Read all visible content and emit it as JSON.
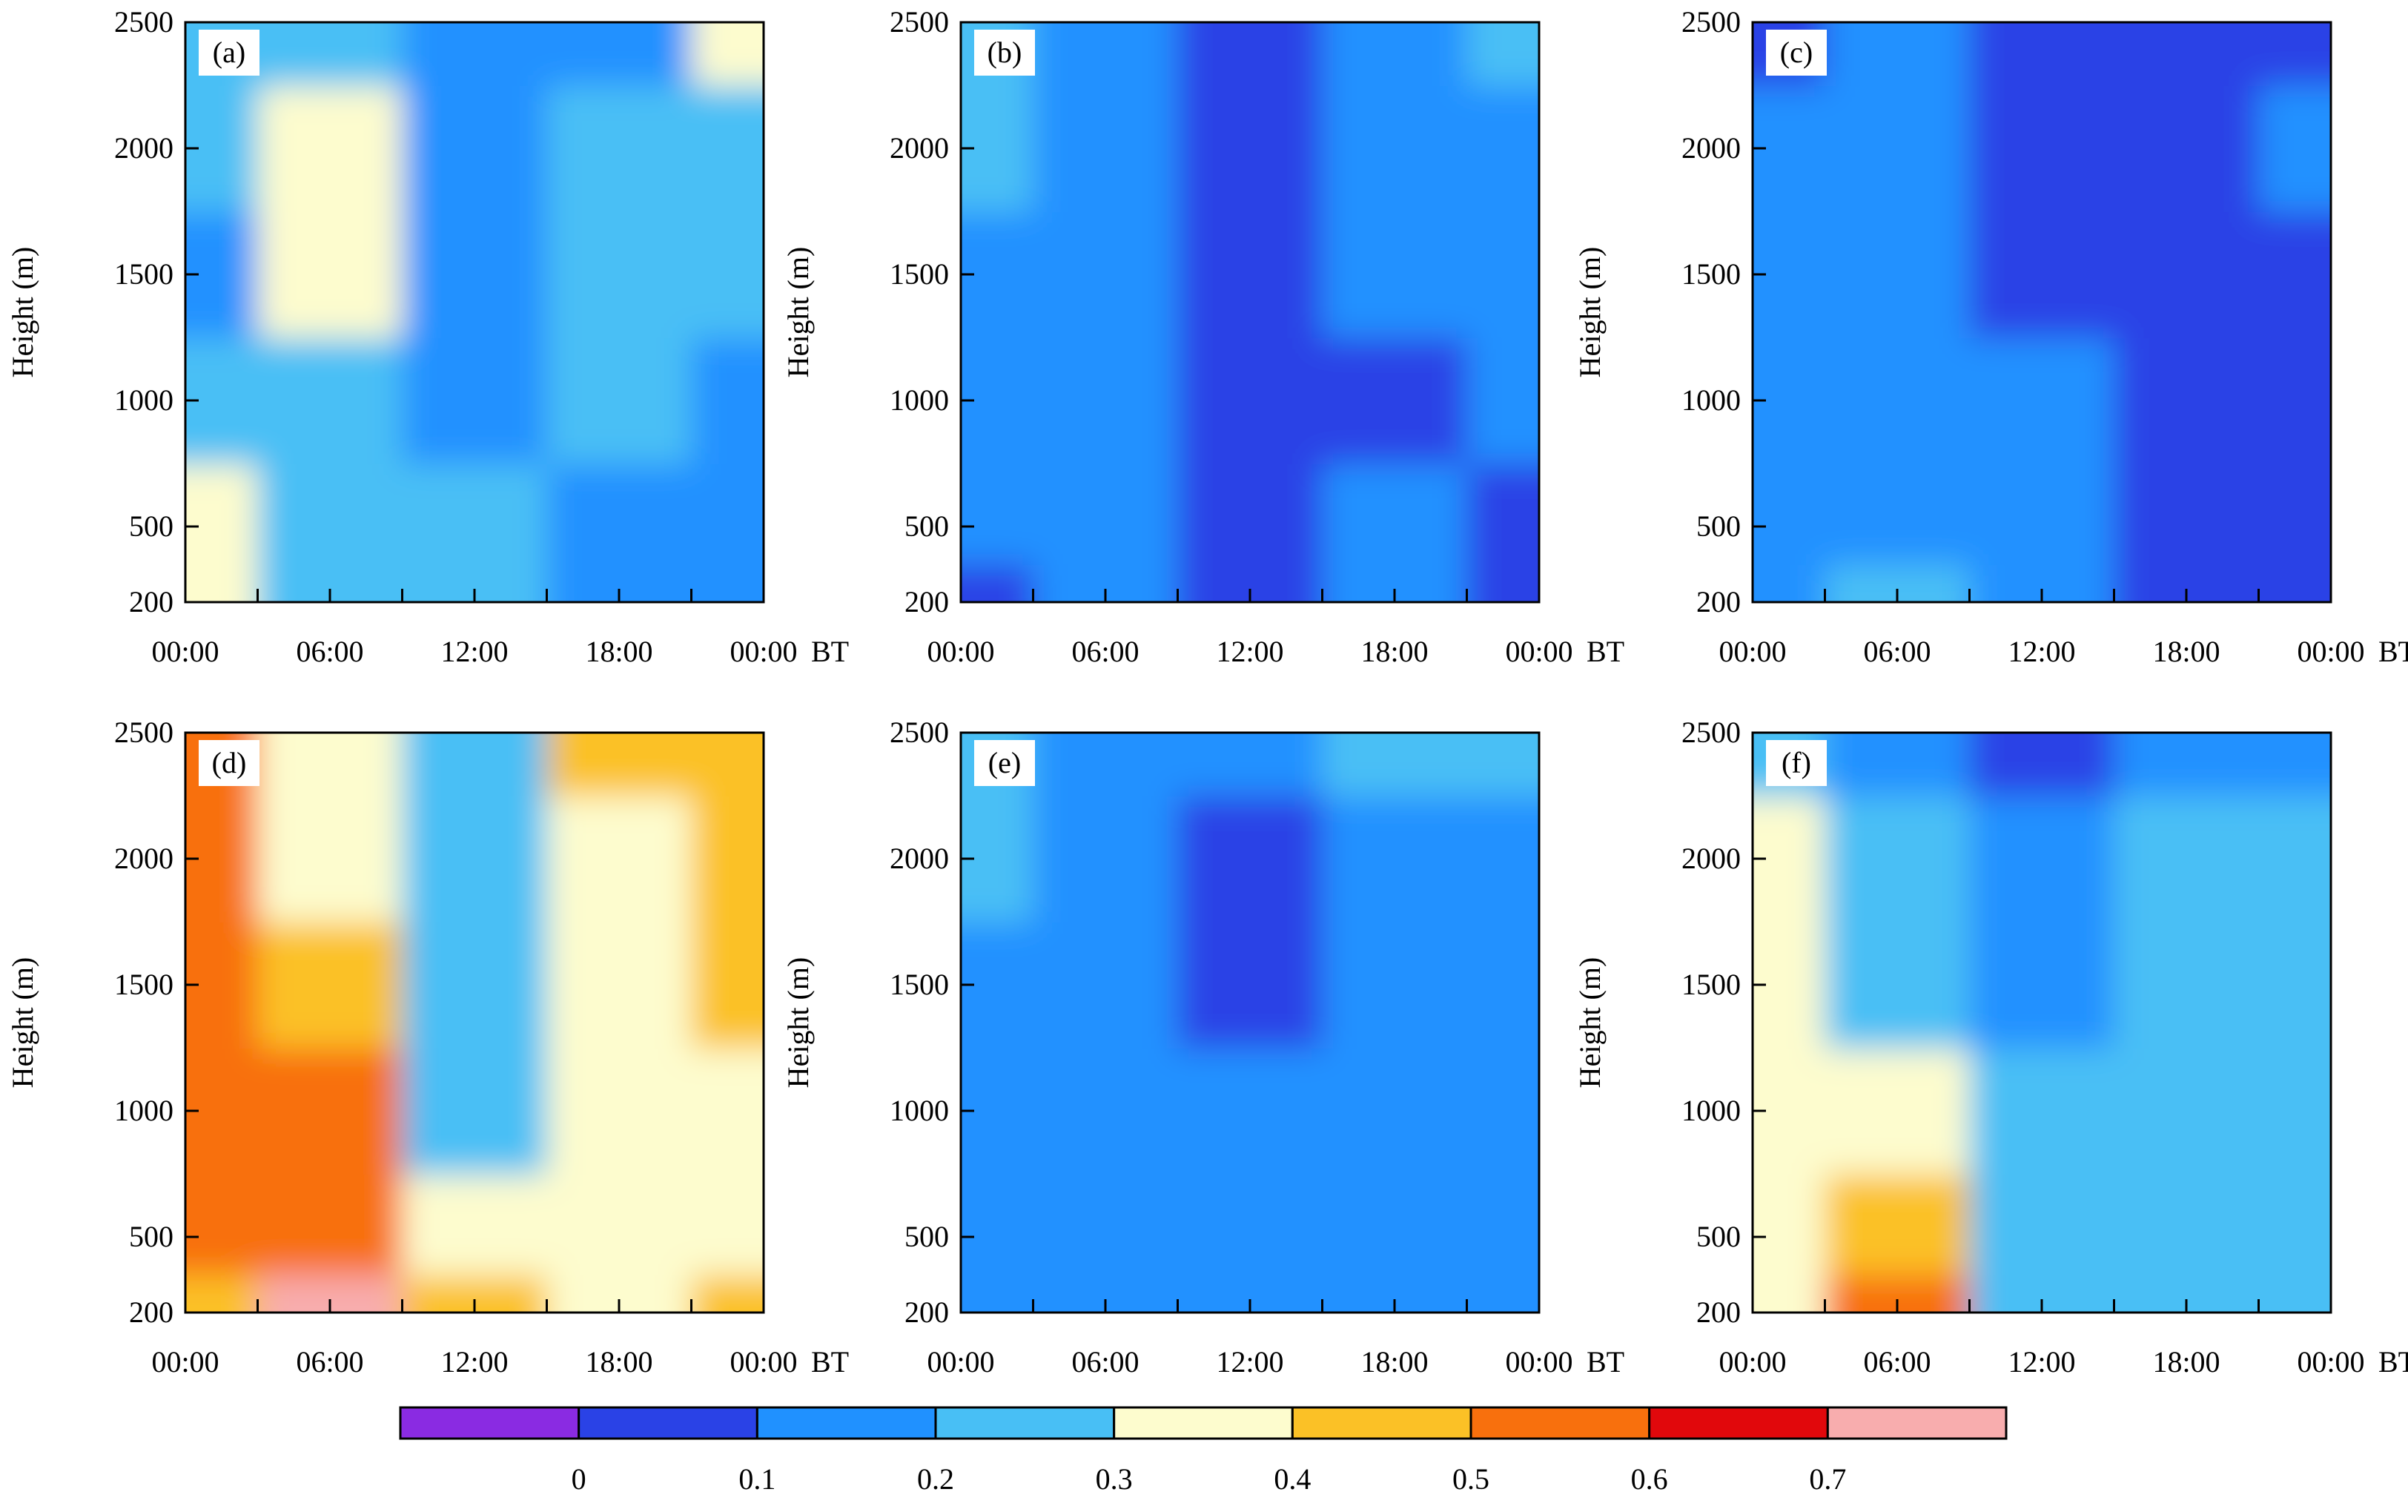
{
  "chart_data": [
    {
      "type": "heatmap",
      "panel": "(a)",
      "colorscale": "contour bins",
      "x_ticks": [
        "00:00",
        "06:00",
        "12:00",
        "18:00",
        "00:00 BT"
      ],
      "xlabel": "",
      "ylabel": "Height (m)",
      "y_ticks": [
        200,
        500,
        1000,
        1500,
        2000,
        2500
      ],
      "ylim": [
        200,
        2500
      ],
      "x_hours": [
        0,
        6,
        12,
        18,
        24
      ],
      "y_levels": [
        200,
        500,
        1000,
        1500,
        2000,
        2500
      ],
      "z": [
        [
          0.35,
          0.35,
          0.25,
          0.15,
          0.25,
          0.25
        ],
        [
          0.25,
          0.25,
          0.25,
          0.35,
          0.35,
          0.25
        ],
        [
          0.25,
          0.25,
          0.15,
          0.15,
          0.15,
          0.15
        ],
        [
          0.15,
          0.15,
          0.25,
          0.25,
          0.25,
          0.15
        ],
        [
          0.15,
          0.15,
          0.15,
          0.25,
          0.25,
          0.35
        ]
      ]
    },
    {
      "type": "heatmap",
      "panel": "(b)",
      "colorscale": "contour bins",
      "x_ticks": [
        "00:00",
        "06:00",
        "12:00",
        "18:00",
        "00:00 BT"
      ],
      "xlabel": "",
      "ylabel": "Height (m)",
      "y_ticks": [
        200,
        500,
        1000,
        1500,
        2000,
        2500
      ],
      "ylim": [
        200,
        2500
      ],
      "x_hours": [
        0,
        6,
        12,
        18,
        24
      ],
      "y_levels": [
        200,
        500,
        1000,
        1500,
        2000,
        2500
      ],
      "z": [
        [
          0.05,
          0.15,
          0.15,
          0.15,
          0.25,
          0.25
        ],
        [
          0.15,
          0.15,
          0.15,
          0.15,
          0.15,
          0.15
        ],
        [
          0.05,
          0.05,
          0.05,
          0.05,
          0.05,
          0.05
        ],
        [
          0.15,
          0.15,
          0.05,
          0.15,
          0.15,
          0.15
        ],
        [
          0.05,
          0.05,
          0.15,
          0.15,
          0.15,
          0.25
        ]
      ]
    },
    {
      "type": "heatmap",
      "panel": "(c)",
      "colorscale": "contour bins",
      "x_ticks": [
        "00:00",
        "06:00",
        "12:00",
        "18:00",
        "00:00 BT"
      ],
      "xlabel": "",
      "ylabel": "Height (m)",
      "y_ticks": [
        200,
        500,
        1000,
        1500,
        2000,
        2500
      ],
      "ylim": [
        200,
        2500
      ],
      "x_hours": [
        0,
        6,
        12,
        18,
        24
      ],
      "y_levels": [
        200,
        500,
        1000,
        1500,
        2000,
        2500
      ],
      "z": [
        [
          0.15,
          0.15,
          0.15,
          0.15,
          0.15,
          0.05
        ],
        [
          0.25,
          0.15,
          0.15,
          0.15,
          0.15,
          0.15
        ],
        [
          0.15,
          0.15,
          0.15,
          0.05,
          0.05,
          0.05
        ],
        [
          0.05,
          0.05,
          0.05,
          0.05,
          0.05,
          0.05
        ],
        [
          0.05,
          0.05,
          0.05,
          0.05,
          0.15,
          0.05
        ]
      ]
    },
    {
      "type": "heatmap",
      "panel": "(d)",
      "colorscale": "contour bins",
      "x_ticks": [
        "00:00",
        "06:00",
        "12:00",
        "18:00",
        "00:00 BT"
      ],
      "xlabel": "",
      "ylabel": "Height (m)",
      "y_ticks": [
        200,
        500,
        1000,
        1500,
        2000,
        2500
      ],
      "ylim": [
        200,
        2500
      ],
      "x_hours": [
        0,
        6,
        12,
        18,
        24
      ],
      "y_levels": [
        200,
        500,
        1000,
        1500,
        2000,
        2500
      ],
      "z": [
        [
          0.45,
          0.55,
          0.55,
          0.55,
          0.55,
          0.55
        ],
        [
          0.75,
          0.55,
          0.55,
          0.45,
          0.35,
          0.35
        ],
        [
          0.45,
          0.35,
          0.25,
          0.25,
          0.25,
          0.25
        ],
        [
          0.35,
          0.35,
          0.35,
          0.35,
          0.35,
          0.45
        ],
        [
          0.45,
          0.35,
          0.35,
          0.45,
          0.45,
          0.45
        ]
      ]
    },
    {
      "type": "heatmap",
      "panel": "(e)",
      "colorscale": "contour bins",
      "x_ticks": [
        "00:00",
        "06:00",
        "12:00",
        "18:00",
        "00:00 BT"
      ],
      "xlabel": "",
      "ylabel": "Height (m)",
      "y_ticks": [
        200,
        500,
        1000,
        1500,
        2000,
        2500
      ],
      "ylim": [
        200,
        2500
      ],
      "x_hours": [
        0,
        6,
        12,
        18,
        24
      ],
      "y_levels": [
        200,
        500,
        1000,
        1500,
        2000,
        2500
      ],
      "z": [
        [
          0.15,
          0.15,
          0.15,
          0.15,
          0.25,
          0.25
        ],
        [
          0.15,
          0.15,
          0.15,
          0.15,
          0.15,
          0.15
        ],
        [
          0.15,
          0.15,
          0.15,
          0.05,
          0.05,
          0.15
        ],
        [
          0.15,
          0.15,
          0.15,
          0.15,
          0.15,
          0.25
        ],
        [
          0.15,
          0.15,
          0.15,
          0.15,
          0.15,
          0.25
        ]
      ]
    },
    {
      "type": "heatmap",
      "panel": "(f)",
      "colorscale": "contour bins",
      "x_ticks": [
        "00:00",
        "06:00",
        "12:00",
        "18:00",
        "00:00 BT"
      ],
      "xlabel": "",
      "ylabel": "Height (m)",
      "y_ticks": [
        200,
        500,
        1000,
        1500,
        2000,
        2500
      ],
      "ylim": [
        200,
        2500
      ],
      "x_hours": [
        0,
        6,
        12,
        18,
        24
      ],
      "y_levels": [
        200,
        500,
        1000,
        1500,
        2000,
        2500
      ],
      "z": [
        [
          0.35,
          0.35,
          0.35,
          0.35,
          0.35,
          0.25
        ],
        [
          0.55,
          0.45,
          0.35,
          0.25,
          0.25,
          0.15
        ],
        [
          0.25,
          0.25,
          0.25,
          0.15,
          0.15,
          0.05
        ],
        [
          0.25,
          0.25,
          0.25,
          0.25,
          0.25,
          0.15
        ],
        [
          0.25,
          0.25,
          0.25,
          0.25,
          0.25,
          0.15
        ]
      ]
    }
  ],
  "colorbar": {
    "labels": [
      "0",
      "0.1",
      "0.2",
      "0.3",
      "0.4",
      "0.5",
      "0.6",
      "0.7"
    ],
    "colors": [
      "#8a2be2",
      "#2a42e6",
      "#2091ff",
      "#48bff5",
      "#fdfcce",
      "#fbc126",
      "#f8700d",
      "#e1080c",
      "#f8adae"
    ]
  }
}
